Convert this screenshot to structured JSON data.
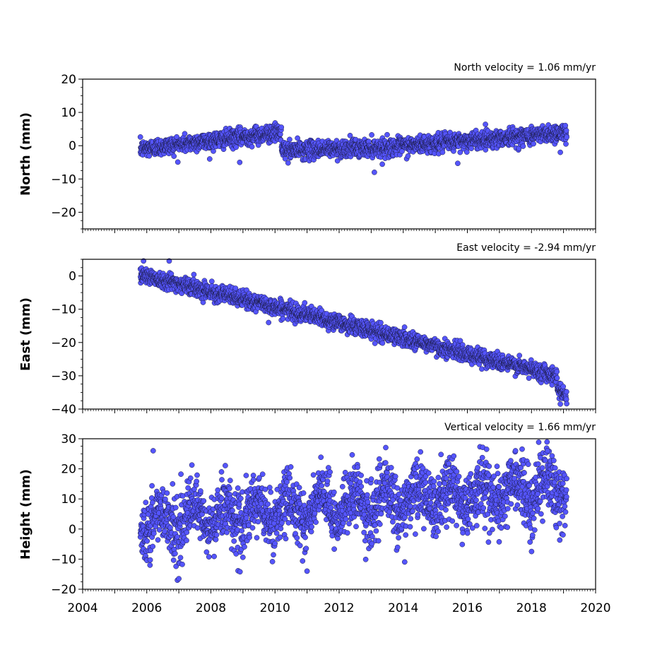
{
  "figure": {
    "background": "#ffffff",
    "marker_fill": "#5555ff",
    "marker_edge": "#1a1a40"
  },
  "chart_data": [
    {
      "type": "scatter",
      "id": "north",
      "ylabel": "North (mm)",
      "annotation": "North velocity = 1.06 mm/yr",
      "velocity_mm_per_yr": 1.06,
      "xlim": [
        2004,
        2020
      ],
      "ylim": [
        -25,
        20
      ],
      "yticks": [
        -20,
        -10,
        0,
        10,
        20
      ],
      "ytick_labels": [
        "−20",
        "−10",
        "0",
        "10",
        "20"
      ],
      "show_xtick_labels": false,
      "time_span": [
        2005.8,
        2019.1
      ],
      "trend_segments": [
        {
          "x": [
            2005.8,
            2010.2
          ],
          "y": [
            -1.0,
            4.0
          ]
        },
        {
          "x": [
            2010.2,
            2013.5
          ],
          "y": [
            -1.5,
            -0.5
          ]
        },
        {
          "x": [
            2013.5,
            2019.1
          ],
          "y": [
            -0.5,
            4.0
          ]
        }
      ],
      "scatter_sd_mm": 1.3,
      "outliers": [
        {
          "x": 2013.1,
          "y": -8.0
        },
        {
          "x": 2008.9,
          "y": -5.0
        },
        {
          "x": 2015.7,
          "y": -5.3
        },
        {
          "x": 2018.9,
          "y": -2.0
        }
      ]
    },
    {
      "type": "scatter",
      "id": "east",
      "ylabel": "East (mm)",
      "annotation": "East velocity = -2.94 mm/yr",
      "velocity_mm_per_yr": -2.94,
      "xlim": [
        2004,
        2020
      ],
      "ylim": [
        -40,
        5
      ],
      "yticks": [
        -40,
        -30,
        -20,
        -10,
        0
      ],
      "ytick_labels": [
        "−40",
        "−30",
        "−20",
        "−10",
        "0"
      ],
      "show_xtick_labels": false,
      "time_span": [
        2005.8,
        2019.1
      ],
      "trend_segments": [
        {
          "x": [
            2005.8,
            2018.8
          ],
          "y": [
            0.5,
            -30.0
          ]
        },
        {
          "x": [
            2018.8,
            2019.1
          ],
          "y": [
            -33.5,
            -36.0
          ]
        }
      ],
      "scatter_sd_mm": 1.2,
      "outliers": [
        {
          "x": 2005.9,
          "y": 4.5
        },
        {
          "x": 2006.7,
          "y": 4.5
        },
        {
          "x": 2009.8,
          "y": -14.0
        },
        {
          "x": 2018.9,
          "y": -38.5
        }
      ]
    },
    {
      "type": "scatter",
      "id": "height",
      "ylabel": "Height (mm)",
      "annotation": "Vertical velocity = 1.66 mm/yr",
      "velocity_mm_per_yr": 1.66,
      "xlim": [
        2004,
        2020
      ],
      "ylim": [
        -20,
        30
      ],
      "yticks": [
        -20,
        -10,
        0,
        10,
        20,
        30
      ],
      "ytick_labels": [
        "−20",
        "−10",
        "0",
        "10",
        "20",
        "30"
      ],
      "show_xtick_labels": true,
      "xticks": [
        2004,
        2006,
        2008,
        2010,
        2012,
        2014,
        2016,
        2018,
        2020
      ],
      "xtick_labels": [
        "2004",
        "2006",
        "2008",
        "2010",
        "2012",
        "2014",
        "2016",
        "2018",
        "2020"
      ],
      "time_span": [
        2005.8,
        2019.1
      ],
      "trend_segments": [
        {
          "x": [
            2005.8,
            2019.1
          ],
          "y": [
            2.0,
            14.0
          ]
        }
      ],
      "seasonal_amplitude_mm": 4.0,
      "scatter_sd_mm": 5.0,
      "outliers": [
        {
          "x": 2006.2,
          "y": 26.0
        },
        {
          "x": 2007.0,
          "y": -16.5
        },
        {
          "x": 2016.6,
          "y": 26.5
        },
        {
          "x": 2017.5,
          "y": 26.0
        },
        {
          "x": 2018.5,
          "y": 26.0
        },
        {
          "x": 2011.0,
          "y": -14.0
        },
        {
          "x": 2006.1,
          "y": -12.0
        }
      ]
    }
  ]
}
